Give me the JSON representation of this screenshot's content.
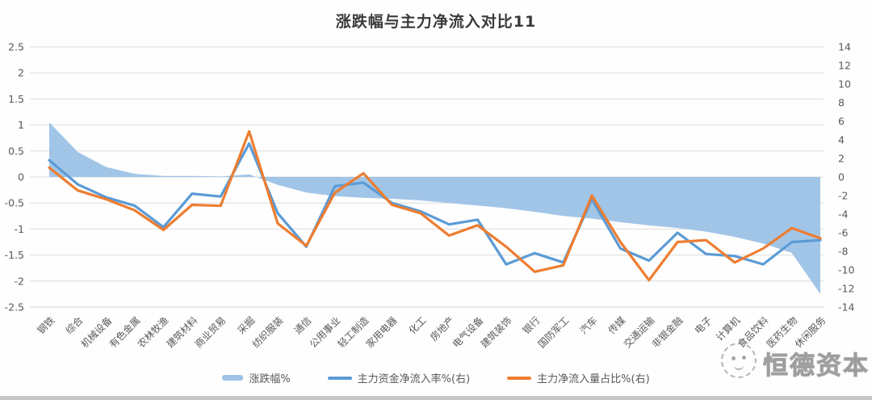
{
  "title": "涨跌幅与主力净流入对比11",
  "watermark": {
    "text": "恒德资本",
    "logo": "sketch-face-seal-icon"
  },
  "accent_colors": {
    "area_blue": "#9DC3E6",
    "line_blue": "#5B9BD5",
    "line_orange": "#ED7D31",
    "grid": "#dcdcdc",
    "axis_text": "#595959"
  },
  "legend": [
    {
      "label": "涨跌幅%",
      "type": "area",
      "color": "#9DC3E6"
    },
    {
      "label": "主力资金净流入率%(右)",
      "type": "line",
      "color": "#5B9BD5"
    },
    {
      "label": "主力净流入量占比%(右)",
      "type": "line",
      "color": "#ED7D31"
    }
  ],
  "chart_data": {
    "type": "line",
    "title": "涨跌幅与主力净流入对比11",
    "grid": true,
    "legend_position": "bottom",
    "categories": [
      "钢铁",
      "综合",
      "机械设备",
      "有色金属",
      "农林牧渔",
      "建筑材料",
      "商业贸易",
      "采掘",
      "纺织服装",
      "通信",
      "公用事业",
      "轻工制造",
      "家用电器",
      "化工",
      "房地产",
      "电气设备",
      "建筑装饰",
      "银行",
      "国防军工",
      "汽车",
      "传媒",
      "交通运输",
      "非银金融",
      "电子",
      "计算机",
      "食品饮料",
      "医药生物",
      "休闲服务"
    ],
    "series": [
      {
        "name": "涨跌幅%",
        "render": "area",
        "axis": "left",
        "color": "#9DC3E6",
        "values": [
          1.05,
          0.48,
          0.19,
          0.06,
          0.02,
          0.02,
          0.01,
          0.05,
          -0.15,
          -0.3,
          -0.37,
          -0.4,
          -0.42,
          -0.45,
          -0.5,
          -0.55,
          -0.6,
          -0.67,
          -0.75,
          -0.8,
          -0.87,
          -0.93,
          -0.98,
          -1.05,
          -1.15,
          -1.28,
          -1.46,
          -2.25
        ]
      },
      {
        "name": "主力资金净流入率%(右)",
        "render": "line",
        "axis": "right",
        "color": "#5B9BD5",
        "values": [
          1.8,
          -0.8,
          -2.2,
          -3.1,
          -5.4,
          -1.8,
          -2.1,
          3.6,
          -3.9,
          -7.5,
          -1.0,
          -0.6,
          -2.8,
          -3.7,
          -5.1,
          -4.6,
          -9.4,
          -8.2,
          -9.2,
          -2.4,
          -7.7,
          -9.0,
          -6.0,
          -8.3,
          -8.5,
          -9.4,
          -7.0,
          -6.8
        ]
      },
      {
        "name": "主力净流入量占比%(右)",
        "render": "line",
        "axis": "right",
        "color": "#ED7D31",
        "values": [
          1.0,
          -1.45,
          -2.4,
          -3.6,
          -5.7,
          -3.0,
          -3.1,
          4.9,
          -5.0,
          -7.4,
          -1.7,
          0.4,
          -3.0,
          -3.9,
          -6.3,
          -5.2,
          -7.5,
          -10.2,
          -9.5,
          -2.0,
          -7.0,
          -11.1,
          -7.0,
          -6.8,
          -9.2,
          -7.7,
          -5.5,
          -6.6
        ]
      }
    ],
    "left_axis": {
      "min": -2.5,
      "max": 2.5,
      "step": 0.5,
      "ticks": [
        "2.5",
        "2",
        "1.5",
        "1",
        "0.5",
        "0",
        "-0.5",
        "-1",
        "-1.5",
        "-2",
        "-2.5"
      ]
    },
    "right_axis": {
      "min": -14,
      "max": 14,
      "step": 2,
      "ticks": [
        "14",
        "12",
        "10",
        "8",
        "6",
        "4",
        "2",
        "0",
        "-2",
        "-4",
        "-6",
        "-8",
        "-10",
        "-12",
        "-14"
      ]
    }
  }
}
